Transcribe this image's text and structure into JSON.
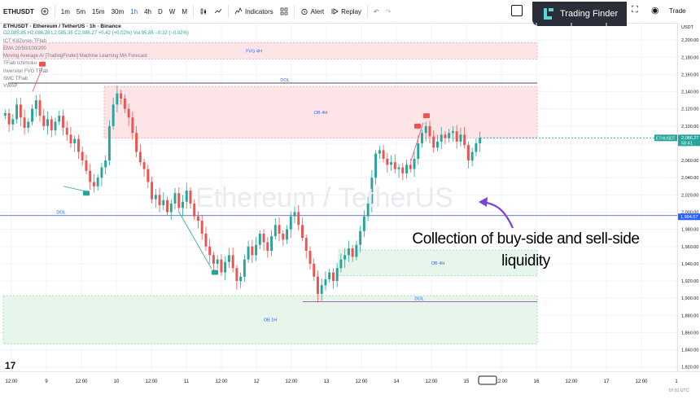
{
  "toolbar": {
    "symbol": "ETHUSDT",
    "timeframes": [
      "1m",
      "5m",
      "15m",
      "30m",
      "1h",
      "4h",
      "D",
      "W",
      "M"
    ],
    "active_timeframe": "1h",
    "indicators_label": "Indicators",
    "alert_label": "Alert",
    "replay_label": "Replay",
    "trade_label": "Trade"
  },
  "brand": {
    "name": "Trading Finder"
  },
  "legend": {
    "title": "ETHUSDT · Ethereum / TetherUS · 1h · Binance",
    "ohlc": "O2,085.85 H2,086.28 L2,085.35 C2,086.27 +0.42 (+0.02%) Vol 95.85 −0.32 (−0.02%)",
    "indicators": [
      "ICT KillZones TFlab",
      "EMA 20/50/100/200",
      "Moving Average AI [TradingFinder] Machine Learning MA Forecast",
      "TFlab Ichimoku",
      "Inversion FVG TFlab",
      "SMC TFlab",
      "VWAP"
    ]
  },
  "watermark": "Ethereum / TetherUS",
  "annotation": {
    "line1": "Collection of buy-side and sell-side",
    "line2": "liquidity"
  },
  "zones": {
    "fvg": "FVG 4H",
    "ob4h_top": "OB 4H",
    "ob4h_bottom": "OB 4H",
    "ob1h": "OB 1H",
    "dol_top": "DOL",
    "dol_mid": "DOL",
    "dol_bottom": "DOL"
  },
  "price_axis": {
    "currency": "USDT",
    "ticks": [
      "2,200.00",
      "2,180.00",
      "2,160.00",
      "2,140.00",
      "2,120.00",
      "2,100.00",
      "2,080.00",
      "2,060.00",
      "2,040.00",
      "2,020.00",
      "2,000.00",
      "1,980.00",
      "1,960.00",
      "1,940.00",
      "1,920.00",
      "1,900.00",
      "1,880.00",
      "1,860.00",
      "1,840.00",
      "1,820.00"
    ],
    "last_symbol": "ETHUSDT",
    "last_price": "2,086.27",
    "countdown": "58:41",
    "level_label": "1,994.57"
  },
  "time_axis": {
    "ticks": [
      "12:00",
      "9",
      "12:00",
      "10",
      "12:00",
      "11",
      "12:00",
      "12",
      "12:00",
      "13",
      "12:00",
      "14",
      "12:00",
      "15",
      "12:00",
      "16",
      "12:00",
      "17",
      "12:00",
      "1"
    ],
    "clock": "07:01 UTC"
  },
  "colors": {
    "up": "#26a69a",
    "down": "#ef5350",
    "supply_zone": "#fde4e7",
    "demand_zone": "#e6f6ea",
    "accent": "#2962ff"
  },
  "chart_data": {
    "type": "candlestick",
    "symbol": "ETHUSDT",
    "interval": "1h",
    "ylim": [
      1815,
      2220
    ],
    "y_ticks": [
      2200,
      2180,
      2160,
      2140,
      2120,
      2100,
      2080,
      2060,
      2040,
      2020,
      2000,
      1980,
      1960,
      1940,
      1920,
      1900,
      1880,
      1860,
      1840,
      1820
    ],
    "closes": [
      2115,
      2102,
      2108,
      2125,
      2110,
      2098,
      2105,
      2120,
      2130,
      2112,
      2100,
      2108,
      2095,
      2105,
      2112,
      2098,
      2090,
      2080,
      2085,
      2070,
      2060,
      2048,
      2035,
      2030,
      2040,
      2052,
      2060,
      2100,
      2125,
      2138,
      2132,
      2120,
      2110,
      2092,
      2070,
      2058,
      2050,
      2035,
      2015,
      2020,
      2008,
      2014,
      2000,
      2010,
      2022,
      2005,
      2012,
      2025,
      2010,
      1995,
      1990,
      1975,
      1960,
      1950,
      1940,
      1945,
      1930,
      1942,
      1950,
      1935,
      1920,
      1925,
      1945,
      1960,
      1950,
      1962,
      1975,
      1965,
      1955,
      1972,
      1985,
      1975,
      1968,
      1980,
      1995,
      2000,
      1985,
      1970,
      1955,
      1940,
      1925,
      1905,
      1915,
      1922,
      1930,
      1920,
      1935,
      1945,
      1950,
      1958,
      1948,
      1962,
      1978,
      1995,
      2010,
      2040,
      2068,
      2072,
      2062,
      2055,
      2058,
      2050,
      2052,
      2045,
      2055,
      2050,
      2062,
      2080,
      2092,
      2100,
      2088,
      2075,
      2082,
      2090,
      2086,
      2092,
      2094,
      2082,
      2090,
      2078,
      2060,
      2070,
      2080,
      2086.27
    ],
    "price_levels": [
      {
        "name": "DOL",
        "price": 2150
      },
      {
        "name": "DOL",
        "price": 1996
      },
      {
        "name": "DOL",
        "price": 1896
      },
      {
        "name": "current",
        "price": 2086.27
      }
    ],
    "zones": [
      {
        "name": "FVG 4H",
        "type": "supply",
        "from": 2178,
        "to": 2197
      },
      {
        "name": "OB 4H",
        "type": "supply",
        "from": 2086,
        "to": 2146
      },
      {
        "name": "OB 4H",
        "type": "demand",
        "from": 1926,
        "to": 1956
      },
      {
        "name": "OB 1H",
        "type": "demand",
        "from": 1847,
        "to": 1903
      }
    ]
  }
}
